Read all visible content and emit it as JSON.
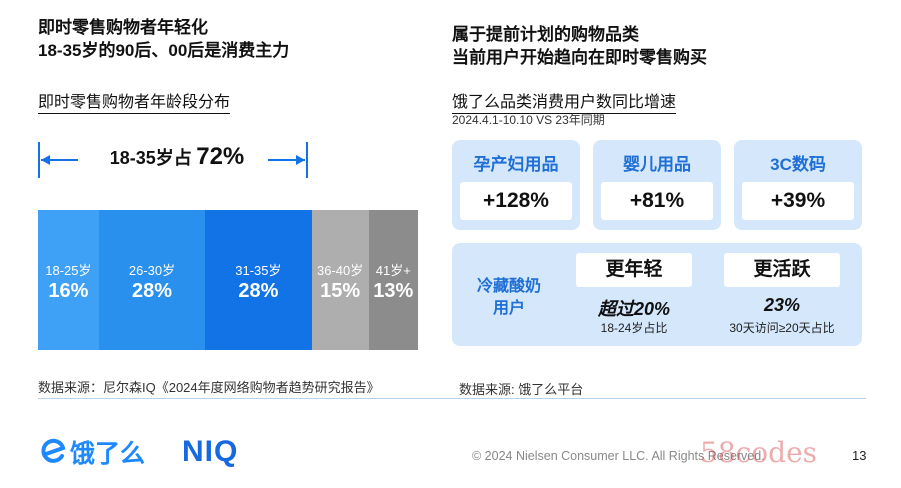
{
  "left": {
    "headline_line1": "即时零售购物者年轻化",
    "headline_line2": "18-35岁的90后、00后是消费主力",
    "chart_subtitle": "即时零售购物者年龄段分布",
    "bracket_text": "18-35岁占",
    "bracket_value": "72%",
    "source": "数据来源：尼尔森IQ《2024年度网络购物者趋势研究报告》"
  },
  "chart_data": {
    "type": "bar",
    "stacked": true,
    "orientation": "horizontal",
    "categories": [
      "18-25岁",
      "26-30岁",
      "31-35岁",
      "36-40岁",
      "41岁+"
    ],
    "values": [
      16,
      28,
      28,
      15,
      13
    ],
    "value_labels": [
      "16%",
      "28%",
      "28%",
      "15%",
      "13%"
    ],
    "colors": [
      "#3fa1f6",
      "#2a90ee",
      "#1273e6",
      "#aeaeae",
      "#8c8c8c"
    ],
    "annotation": "18-35岁占 72%",
    "title": "即时零售购物者年龄段分布",
    "xlabel": "",
    "ylabel": ""
  },
  "right": {
    "headline_line1": "属于提前计划的购物品类",
    "headline_line2": "当前用户开始趋向在即时零售购买",
    "subtitle": "饿了么品类消费用户数同比增速",
    "date_note": "2024.4.1-10.10 VS 23年同期",
    "categories": [
      {
        "name": "孕产妇用品",
        "value": "+128%"
      },
      {
        "name": "婴儿用品",
        "value": "+81%"
      },
      {
        "name": "3C数码",
        "value": "+39%"
      }
    ],
    "yogurt": {
      "label_line1": "冷藏酸奶",
      "label_line2": "用户",
      "young": {
        "title": "更年轻",
        "stat": "超过20%",
        "desc": "18-24岁占比"
      },
      "active": {
        "title": "更活跃",
        "stat": "23%",
        "desc": "30天访问≥20天占比"
      }
    },
    "source": "数据来源: 饿了么平台"
  },
  "footer": {
    "logo_eleme": "饿了么",
    "logo_niq": "NIQ",
    "copyright": "© 2024 Nielsen Consumer LLC. All Rights Reserved.",
    "page_number": "13",
    "watermark": "58codes"
  },
  "theme": {
    "accent_blue": "#1f6fd6",
    "card_bg": "#d4e7fb"
  }
}
